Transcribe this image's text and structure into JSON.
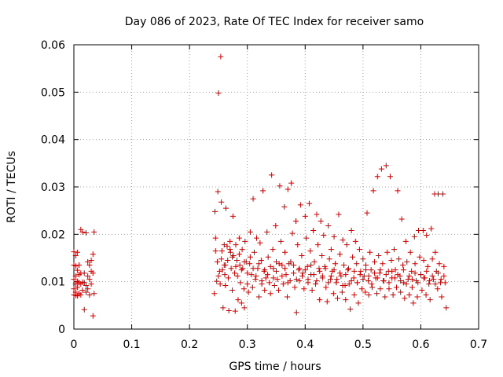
{
  "chart_data": {
    "type": "scatter",
    "title": "Day 086 of 2023, Rate Of TEC Index for receiver samo",
    "xlabel": "GPS time / hours",
    "ylabel": "ROTI / TECUs",
    "xlim": [
      0,
      0.7
    ],
    "ylim": [
      0,
      0.06
    ],
    "xticks": [
      "0",
      "0.1",
      "0.2",
      "0.3",
      "0.4",
      "0.5",
      "0.6",
      "0.7"
    ],
    "yticks": [
      "0",
      "0.01",
      "0.02",
      "0.03",
      "0.04",
      "0.05",
      "0.06"
    ],
    "grid": true,
    "marker": "+",
    "color": "#cc0000",
    "series": [
      {
        "x": [
          0.0,
          0.0,
          0.0,
          0.0,
          0.0,
          0.003,
          0.003,
          0.003,
          0.003,
          0.003,
          0.003,
          0.006,
          0.006,
          0.006,
          0.006,
          0.006,
          0.009,
          0.009,
          0.009,
          0.009,
          0.012,
          0.012,
          0.012,
          0.012,
          0.015,
          0.015,
          0.015,
          0.018,
          0.018,
          0.018,
          0.021,
          0.021,
          0.021,
          0.024,
          0.024,
          0.024,
          0.027,
          0.027,
          0.027,
          0.03,
          0.03,
          0.03,
          0.033,
          0.033,
          0.033,
          0.035,
          0.035,
          0.243,
          0.244,
          0.245,
          0.247,
          0.248,
          0.249,
          0.25,
          0.252,
          0.253,
          0.254,
          0.255,
          0.256,
          0.257,
          0.258,
          0.26,
          0.261,
          0.262,
          0.263,
          0.265,
          0.266,
          0.267,
          0.268,
          0.27,
          0.271,
          0.272,
          0.274,
          0.275,
          0.276,
          0.278,
          0.279,
          0.28,
          0.282,
          0.283,
          0.284,
          0.286,
          0.287,
          0.288,
          0.29,
          0.291,
          0.292,
          0.294,
          0.295,
          0.296,
          0.298,
          0.3,
          0.302,
          0.304,
          0.305,
          0.307,
          0.309,
          0.31,
          0.312,
          0.314,
          0.316,
          0.318,
          0.32,
          0.322,
          0.324,
          0.325,
          0.327,
          0.329,
          0.33,
          0.332,
          0.334,
          0.336,
          0.338,
          0.34,
          0.342,
          0.344,
          0.345,
          0.347,
          0.349,
          0.35,
          0.352,
          0.354,
          0.356,
          0.358,
          0.36,
          0.362,
          0.364,
          0.365,
          0.367,
          0.369,
          0.37,
          0.372,
          0.374,
          0.376,
          0.378,
          0.38,
          0.382,
          0.384,
          0.385,
          0.387,
          0.389,
          0.39,
          0.392,
          0.394,
          0.396,
          0.398,
          0.4,
          0.402,
          0.404,
          0.405,
          0.407,
          0.409,
          0.41,
          0.412,
          0.414,
          0.416,
          0.418,
          0.42,
          0.422,
          0.424,
          0.425,
          0.427,
          0.429,
          0.43,
          0.432,
          0.434,
          0.436,
          0.438,
          0.44,
          0.442,
          0.444,
          0.445,
          0.447,
          0.449,
          0.45,
          0.452,
          0.454,
          0.456,
          0.458,
          0.46,
          0.462,
          0.464,
          0.465,
          0.467,
          0.469,
          0.47,
          0.472,
          0.474,
          0.476,
          0.478,
          0.48,
          0.482,
          0.484,
          0.485,
          0.487,
          0.489,
          0.49,
          0.492,
          0.494,
          0.496,
          0.498,
          0.5,
          0.502,
          0.504,
          0.505,
          0.507,
          0.509,
          0.51,
          0.512,
          0.514,
          0.516,
          0.518,
          0.52,
          0.522,
          0.524,
          0.525,
          0.527,
          0.529,
          0.53,
          0.532,
          0.534,
          0.536,
          0.538,
          0.54,
          0.542,
          0.544,
          0.545,
          0.547,
          0.549,
          0.55,
          0.552,
          0.554,
          0.556,
          0.558,
          0.56,
          0.562,
          0.564,
          0.565,
          0.567,
          0.569,
          0.57,
          0.572,
          0.574,
          0.576,
          0.578,
          0.58,
          0.582,
          0.584,
          0.585,
          0.587,
          0.589,
          0.59,
          0.592,
          0.594,
          0.596,
          0.598,
          0.6,
          0.602,
          0.604,
          0.605,
          0.607,
          0.609,
          0.61,
          0.612,
          0.614,
          0.616,
          0.618,
          0.62,
          0.622,
          0.624,
          0.625,
          0.627,
          0.629,
          0.63,
          0.632,
          0.634,
          0.636,
          0.638,
          0.64,
          0.642,
          0.644,
          0.245,
          0.25,
          0.255,
          0.26,
          0.262,
          0.27,
          0.274,
          0.28,
          0.286,
          0.29,
          0.295,
          0.3,
          0.305,
          0.31,
          0.315,
          0.32,
          0.325,
          0.33,
          0.335,
          0.34,
          0.345,
          0.35,
          0.355,
          0.36,
          0.365,
          0.37,
          0.375,
          0.38,
          0.385,
          0.39,
          0.395,
          0.4,
          0.405,
          0.41,
          0.415,
          0.42,
          0.425,
          0.43,
          0.435,
          0.44,
          0.445,
          0.45,
          0.455,
          0.46,
          0.465,
          0.47,
          0.475,
          0.48,
          0.485,
          0.49,
          0.495,
          0.5,
          0.505,
          0.51,
          0.515,
          0.52,
          0.525,
          0.53,
          0.535,
          0.54,
          0.545,
          0.55,
          0.555,
          0.56,
          0.565,
          0.57,
          0.575,
          0.58,
          0.585,
          0.59,
          0.595,
          0.6,
          0.605,
          0.61,
          0.615,
          0.62,
          0.625,
          0.63,
          0.635,
          0.64
        ],
        "y": [
          0.0163,
          0.0135,
          0.0105,
          0.0085,
          0.0072,
          0.0155,
          0.0133,
          0.0112,
          0.0095,
          0.0078,
          0.0071,
          0.0162,
          0.0124,
          0.0101,
          0.0088,
          0.007,
          0.0135,
          0.0115,
          0.0098,
          0.0075,
          0.021,
          0.0118,
          0.0095,
          0.0072,
          0.0205,
          0.0099,
          0.0082,
          0.0118,
          0.0098,
          0.0041,
          0.0203,
          0.0092,
          0.0078,
          0.0142,
          0.0112,
          0.0085,
          0.0135,
          0.0105,
          0.0072,
          0.0145,
          0.0122,
          0.0095,
          0.0158,
          0.0118,
          0.0028,
          0.0205,
          0.0075,
          0.0075,
          0.0248,
          0.0192,
          0.0101,
          0.0142,
          0.029,
          0.0498,
          0.0122,
          0.0095,
          0.0575,
          0.0268,
          0.0165,
          0.0125,
          0.0045,
          0.0135,
          0.0115,
          0.0092,
          0.0255,
          0.0175,
          0.0145,
          0.0108,
          0.0039,
          0.0185,
          0.0162,
          0.0128,
          0.0082,
          0.0238,
          0.0155,
          0.0118,
          0.0038,
          0.0178,
          0.0145,
          0.0112,
          0.0062,
          0.0192,
          0.0135,
          0.0098,
          0.0055,
          0.0168,
          0.0128,
          0.0085,
          0.0045,
          0.0185,
          0.0142,
          0.0095,
          0.0078,
          0.0138,
          0.0205,
          0.0115,
          0.0088,
          0.0275,
          0.0162,
          0.0105,
          0.0192,
          0.0128,
          0.0068,
          0.0182,
          0.0145,
          0.0095,
          0.0292,
          0.0122,
          0.0082,
          0.0108,
          0.0205,
          0.0152,
          0.0098,
          0.0075,
          0.0325,
          0.0168,
          0.0128,
          0.0092,
          0.0218,
          0.0142,
          0.0105,
          0.0082,
          0.0302,
          0.0185,
          0.0135,
          0.0095,
          0.0258,
          0.0162,
          0.0115,
          0.0068,
          0.0295,
          0.0138,
          0.0102,
          0.0308,
          0.0202,
          0.0135,
          0.0088,
          0.0228,
          0.0035,
          0.0178,
          0.0125,
          0.0102,
          0.0262,
          0.0155,
          0.0118,
          0.0085,
          0.0238,
          0.0192,
          0.0132,
          0.0105,
          0.0265,
          0.0165,
          0.0115,
          0.0082,
          0.0208,
          0.0142,
          0.0095,
          0.0242,
          0.0178,
          0.0128,
          0.0062,
          0.0228,
          0.0155,
          0.0112,
          0.0198,
          0.0132,
          0.0088,
          0.0058,
          0.0218,
          0.0148,
          0.0105,
          0.0168,
          0.0122,
          0.0075,
          0.0195,
          0.0138,
          0.0098,
          0.0065,
          0.0242,
          0.0158,
          0.0112,
          0.0078,
          0.0188,
          0.0135,
          0.0092,
          0.0062,
          0.0178,
          0.0125,
          0.0095,
          0.0042,
          0.0208,
          0.0152,
          0.0108,
          0.0072,
          0.0185,
          0.0138,
          0.0098,
          0.0055,
          0.0168,
          0.0122,
          0.0085,
          0.0148,
          0.0112,
          0.0078,
          0.0135,
          0.0245,
          0.0102,
          0.0072,
          0.0162,
          0.0125,
          0.0088,
          0.0292,
          0.0142,
          0.0108,
          0.0075,
          0.0322,
          0.0155,
          0.0118,
          0.0085,
          0.0338,
          0.0138,
          0.0102,
          0.0068,
          0.0345,
          0.0162,
          0.0122,
          0.0085,
          0.0322,
          0.0145,
          0.0108,
          0.0072,
          0.0168,
          0.0125,
          0.0088,
          0.0292,
          0.0148,
          0.0112,
          0.0078,
          0.0232,
          0.0135,
          0.0098,
          0.0065,
          0.0185,
          0.0142,
          0.0105,
          0.0072,
          0.0162,
          0.0122,
          0.0088,
          0.0055,
          0.0195,
          0.0138,
          0.0102,
          0.0068,
          0.0208,
          0.0152,
          0.0115,
          0.0082,
          0.0208,
          0.0145,
          0.0108,
          0.0072,
          0.0198,
          0.0132,
          0.0095,
          0.0062,
          0.0212,
          0.0148,
          0.0105,
          0.0285,
          0.0162,
          0.0122,
          0.0085,
          0.0285,
          0.0138,
          0.0098,
          0.0068,
          0.0285,
          0.0132,
          0.0098,
          0.0045,
          0.0165,
          0.0112,
          0.0148,
          0.0178,
          0.0135,
          0.0168,
          0.0152,
          0.0132,
          0.0158,
          0.0125,
          0.0142,
          0.0118,
          0.0152,
          0.0128,
          0.0112,
          0.0138,
          0.0102,
          0.0125,
          0.0115,
          0.0132,
          0.0108,
          0.0122,
          0.0138,
          0.0112,
          0.0128,
          0.0098,
          0.0142,
          0.0118,
          0.0105,
          0.0128,
          0.0112,
          0.0125,
          0.0098,
          0.0135,
          0.0115,
          0.0102,
          0.0122,
          0.0108,
          0.0128,
          0.0098,
          0.0112,
          0.0125,
          0.0105,
          0.0118,
          0.0092,
          0.0115,
          0.0128,
          0.0102,
          0.0122,
          0.0098,
          0.0115,
          0.0105,
          0.0125,
          0.0112,
          0.0095,
          0.0118,
          0.0108,
          0.0125,
          0.0102,
          0.0115,
          0.0098,
          0.0122,
          0.0108,
          0.0115,
          0.0102,
          0.0125,
          0.0095,
          0.0112,
          0.0105,
          0.0118,
          0.0098,
          0.0115,
          0.0108,
          0.0122,
          0.0102,
          0.0112,
          0.0095,
          0.0118,
          0.0105,
          0.0112
        ]
      }
    ]
  }
}
